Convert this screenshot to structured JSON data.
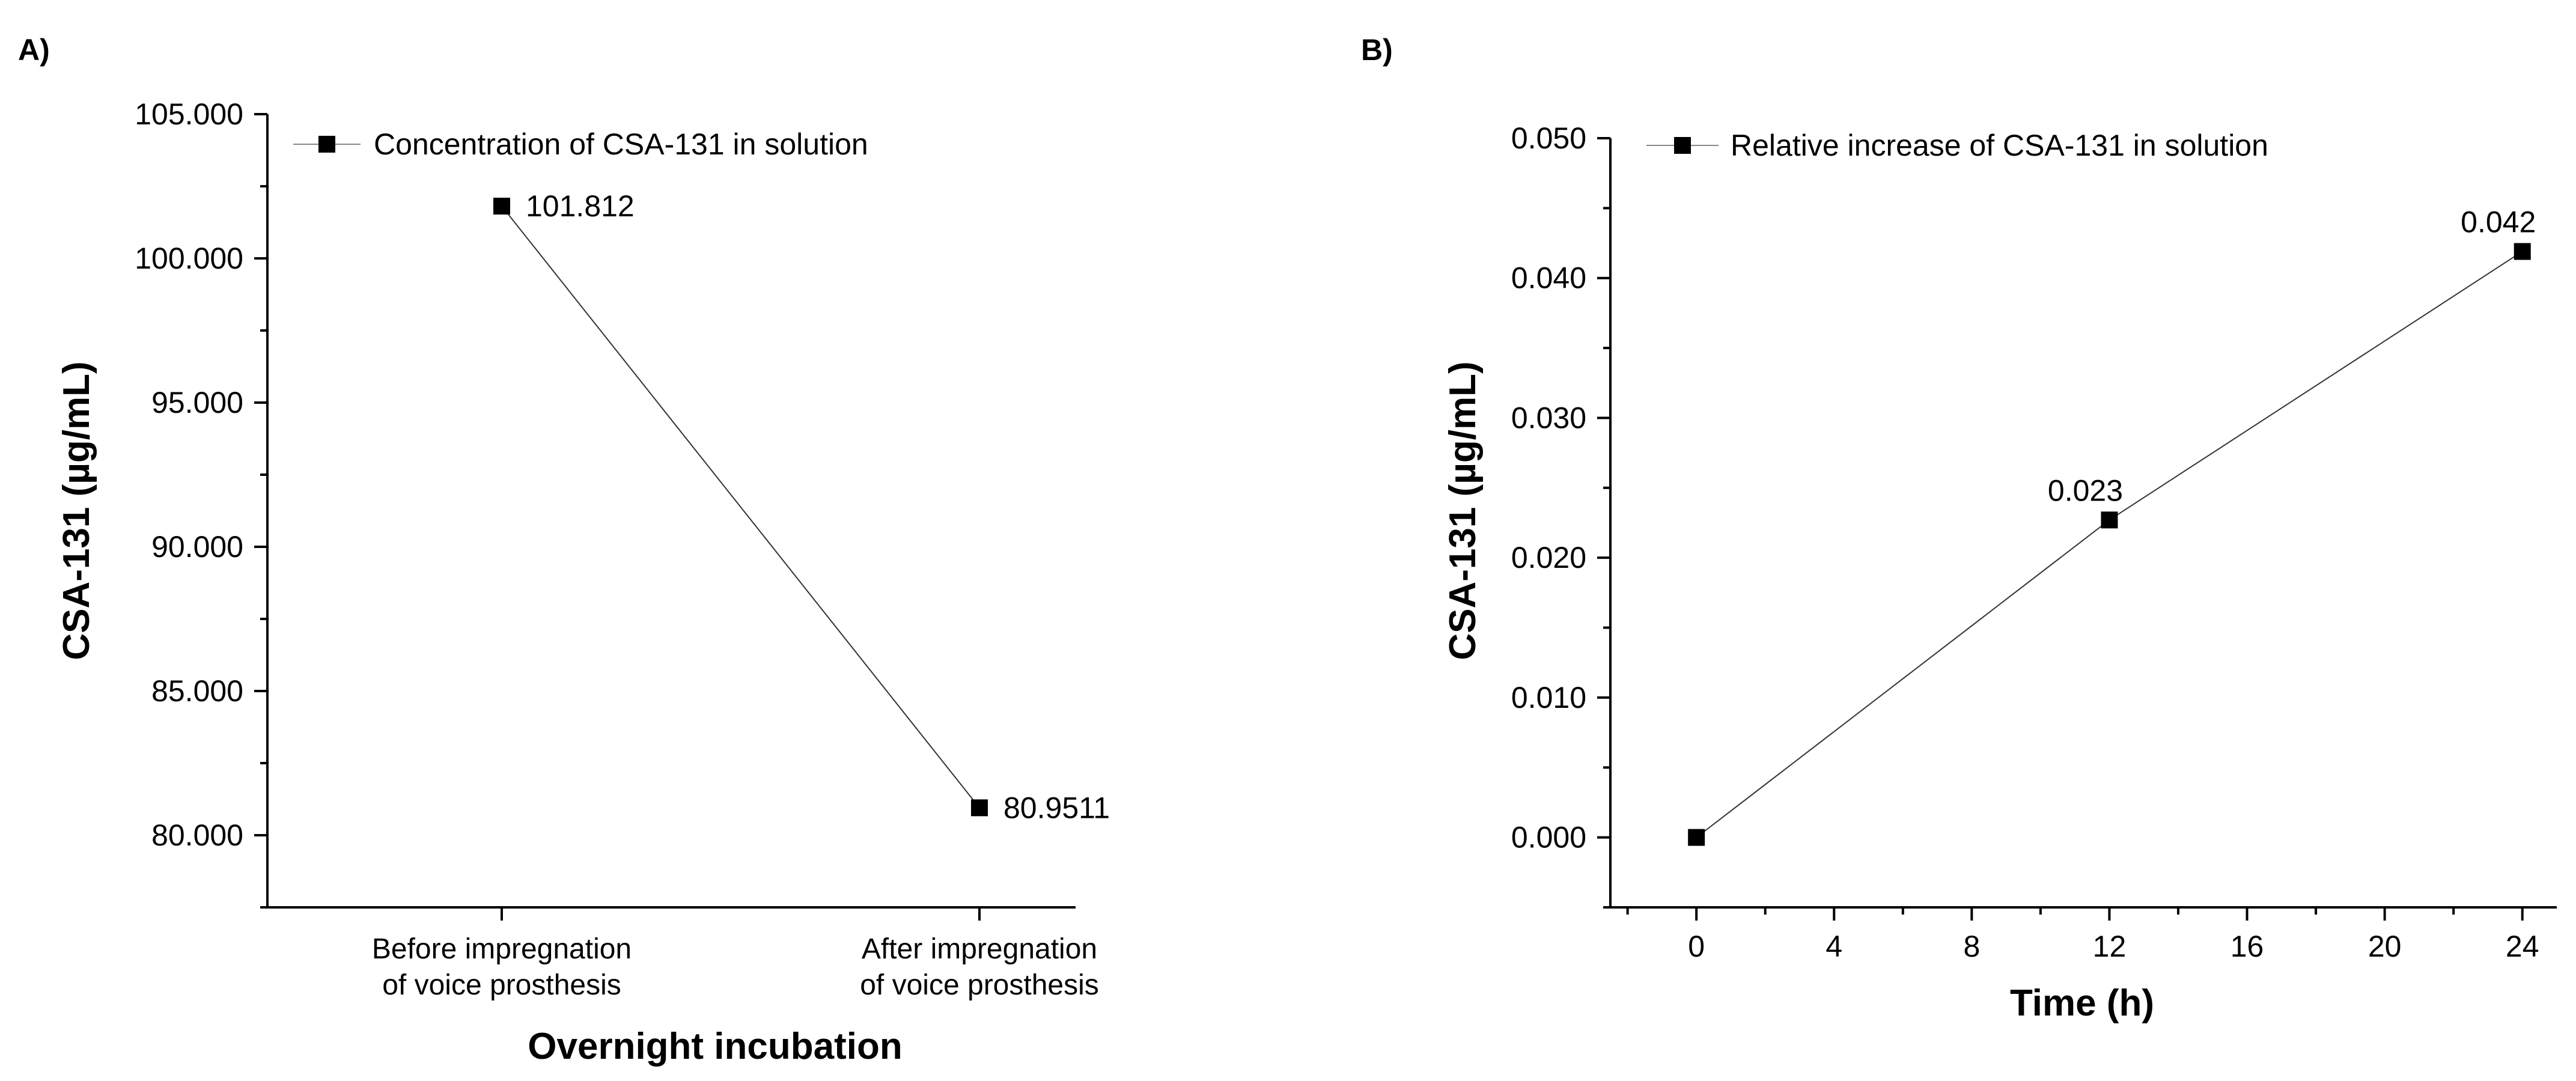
{
  "chart_data": [
    {
      "panel_label": "A)",
      "type": "line",
      "title": "",
      "xlabel": "Overnight incubation",
      "ylabel": "CSA-131 (µg/mL)",
      "categories": [
        [
          "Before impregnation",
          "of voice prosthesis"
        ],
        [
          "After impregnation",
          "of voice prosthesis"
        ]
      ],
      "ylim": [
        77.5,
        105
      ],
      "yticks": [
        80,
        85,
        90,
        95,
        100,
        105
      ],
      "ytick_labels": [
        "80.000",
        "85.000",
        "90.000",
        "95.000",
        "100.000",
        "105.000"
      ],
      "series": [
        {
          "name": "Concentration of CSA-131 in solution",
          "values": [
            101.812,
            80.9511
          ],
          "data_labels": [
            "101.812",
            "80.9511"
          ]
        }
      ],
      "legend": {
        "label": "Concentration of CSA-131 in solution",
        "placement": "top-left"
      }
    },
    {
      "panel_label": "B)",
      "type": "line",
      "title": "",
      "xlabel": "Time (h)",
      "ylabel": "CSA-131 (µg/mL)",
      "xlim": [
        -2.5,
        25
      ],
      "xticks": [
        0,
        4,
        8,
        12,
        16,
        20,
        24
      ],
      "xtick_labels": [
        "0",
        "4",
        "8",
        "12",
        "16",
        "20",
        "24"
      ],
      "ylim": [
        -0.005,
        0.05
      ],
      "yticks": [
        0,
        0.01,
        0.02,
        0.03,
        0.04,
        0.05
      ],
      "ytick_labels": [
        "0.000",
        "0.010",
        "0.020",
        "0.030",
        "0.040",
        "0.050"
      ],
      "series": [
        {
          "name": "Relative increase of CSA-131 in solution",
          "x": [
            0,
            12,
            24
          ],
          "y": [
            0,
            0.0227,
            0.0419
          ],
          "data_labels": [
            "",
            "0.023",
            "0.042"
          ]
        }
      ],
      "legend": {
        "label": "Relative increase of CSA-131 in solution",
        "placement": "top-left"
      }
    }
  ]
}
